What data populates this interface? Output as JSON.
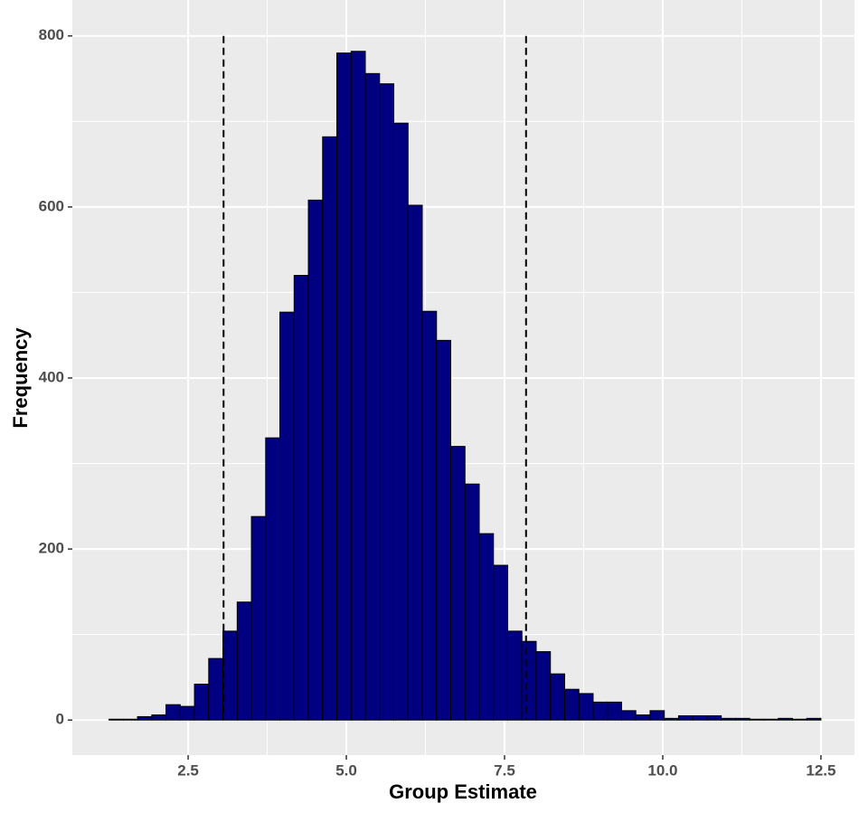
{
  "chart_data": {
    "type": "histogram",
    "x_label": "Group Estimate",
    "y_label": "Frequency",
    "bins": [
      1.25,
      1.475,
      1.7,
      1.925,
      2.15,
      2.375,
      2.6,
      2.825,
      3.05,
      3.275,
      3.5,
      3.725,
      3.95,
      4.175,
      4.4,
      4.625,
      4.85,
      5.075,
      5.3,
      5.525,
      5.75,
      5.975,
      6.2,
      6.425,
      6.65,
      6.875,
      7.1,
      7.325,
      7.55,
      7.775,
      8.0,
      8.225,
      8.45,
      8.675,
      8.9,
      9.125,
      9.35,
      9.575,
      9.8,
      10.025,
      10.25,
      10.475,
      10.7,
      10.925,
      11.15,
      11.375,
      11.6,
      11.825,
      12.05,
      12.275,
      12.5
    ],
    "values": [
      1,
      1,
      4,
      6,
      18,
      16,
      42,
      72,
      104,
      138,
      238,
      330,
      477,
      520,
      608,
      682,
      780,
      782,
      756,
      744,
      698,
      602,
      478,
      444,
      320,
      276,
      218,
      181,
      104,
      92,
      80,
      54,
      36,
      31,
      21,
      21,
      11,
      6,
      11,
      2,
      5,
      5,
      5,
      2,
      2,
      1,
      1,
      2,
      1,
      2
    ],
    "color": "#000080",
    "edge_color": "#000000",
    "vlines": [
      3.06,
      7.84
    ],
    "xlim": [
      0.67,
      13.03
    ],
    "ylim": [
      -41,
      842
    ],
    "xticks": [
      2.5,
      {
        "value": 5,
        "label": "5.0"
      },
      7.5,
      {
        "value": 10,
        "label": "10.0"
      },
      12.5
    ],
    "yticks": [
      0,
      200,
      400,
      600,
      800
    ],
    "grid": true
  }
}
